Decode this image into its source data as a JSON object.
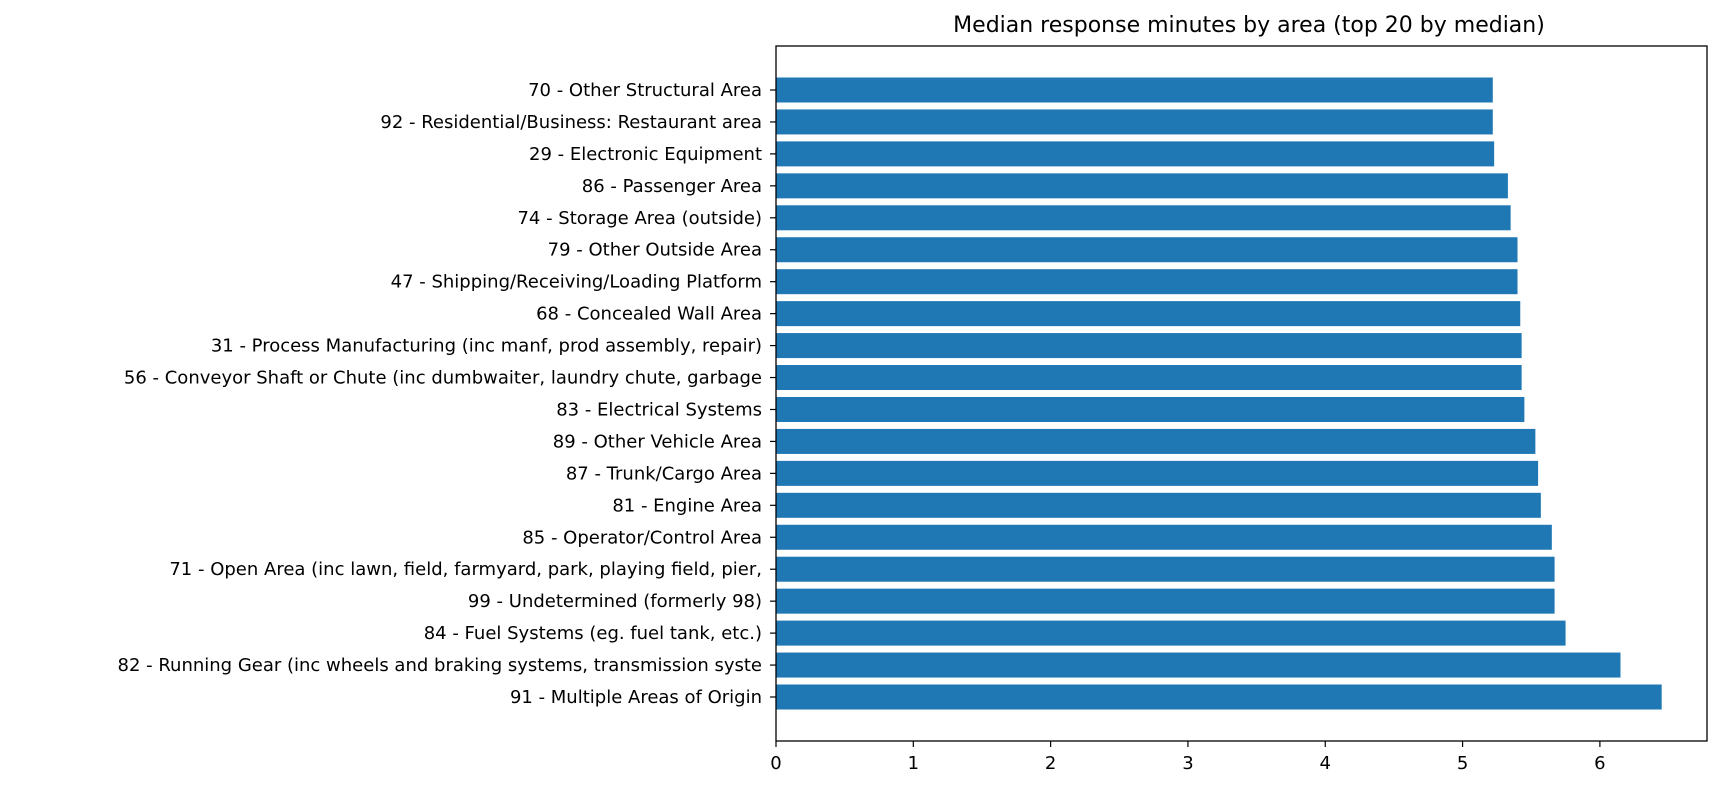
{
  "colors": {
    "bar": "#1f77b4",
    "axis": "#000000",
    "background": "#ffffff"
  },
  "chart_data": {
    "type": "bar",
    "orientation": "horizontal",
    "title": "Median response minutes by area (top 20 by median)",
    "xlabel": "",
    "ylabel": "",
    "xlim": [
      0,
      6.78
    ],
    "xticks": [
      0,
      1,
      2,
      3,
      4,
      5,
      6
    ],
    "grid": false,
    "categories": [
      "91 - Multiple Areas of Origin",
      "82 - Running Gear (inc wheels and braking systems, transmission syste",
      "84 - Fuel Systems (eg. fuel tank, etc.)",
      "99 - Undetermined  (formerly 98)",
      "71 - Open Area (inc lawn, field, farmyard, park, playing field, pier,",
      "85 - Operator/Control Area",
      "81 - Engine Area",
      "87 - Trunk/Cargo Area",
      "89 - Other Vehicle Area",
      "83 - Electrical Systems",
      "56 - Conveyor Shaft or Chute (inc dumbwaiter, laundry chute, garbage",
      "31 - Process Manufacturing (inc manf, prod assembly, repair)",
      "68 - Concealed Wall Area",
      "47 - Shipping/Receiving/Loading Platform",
      "79 - Other Outside Area",
      "74 - Storage Area (outside)",
      "86 - Passenger Area",
      "29 - Electronic Equipment",
      "92 - Residential/Business: Restaurant area",
      "70 - Other Structural Area"
    ],
    "values": [
      6.45,
      6.15,
      5.75,
      5.67,
      5.67,
      5.65,
      5.57,
      5.55,
      5.53,
      5.45,
      5.43,
      5.43,
      5.42,
      5.4,
      5.4,
      5.35,
      5.33,
      5.23,
      5.22,
      5.22
    ]
  }
}
